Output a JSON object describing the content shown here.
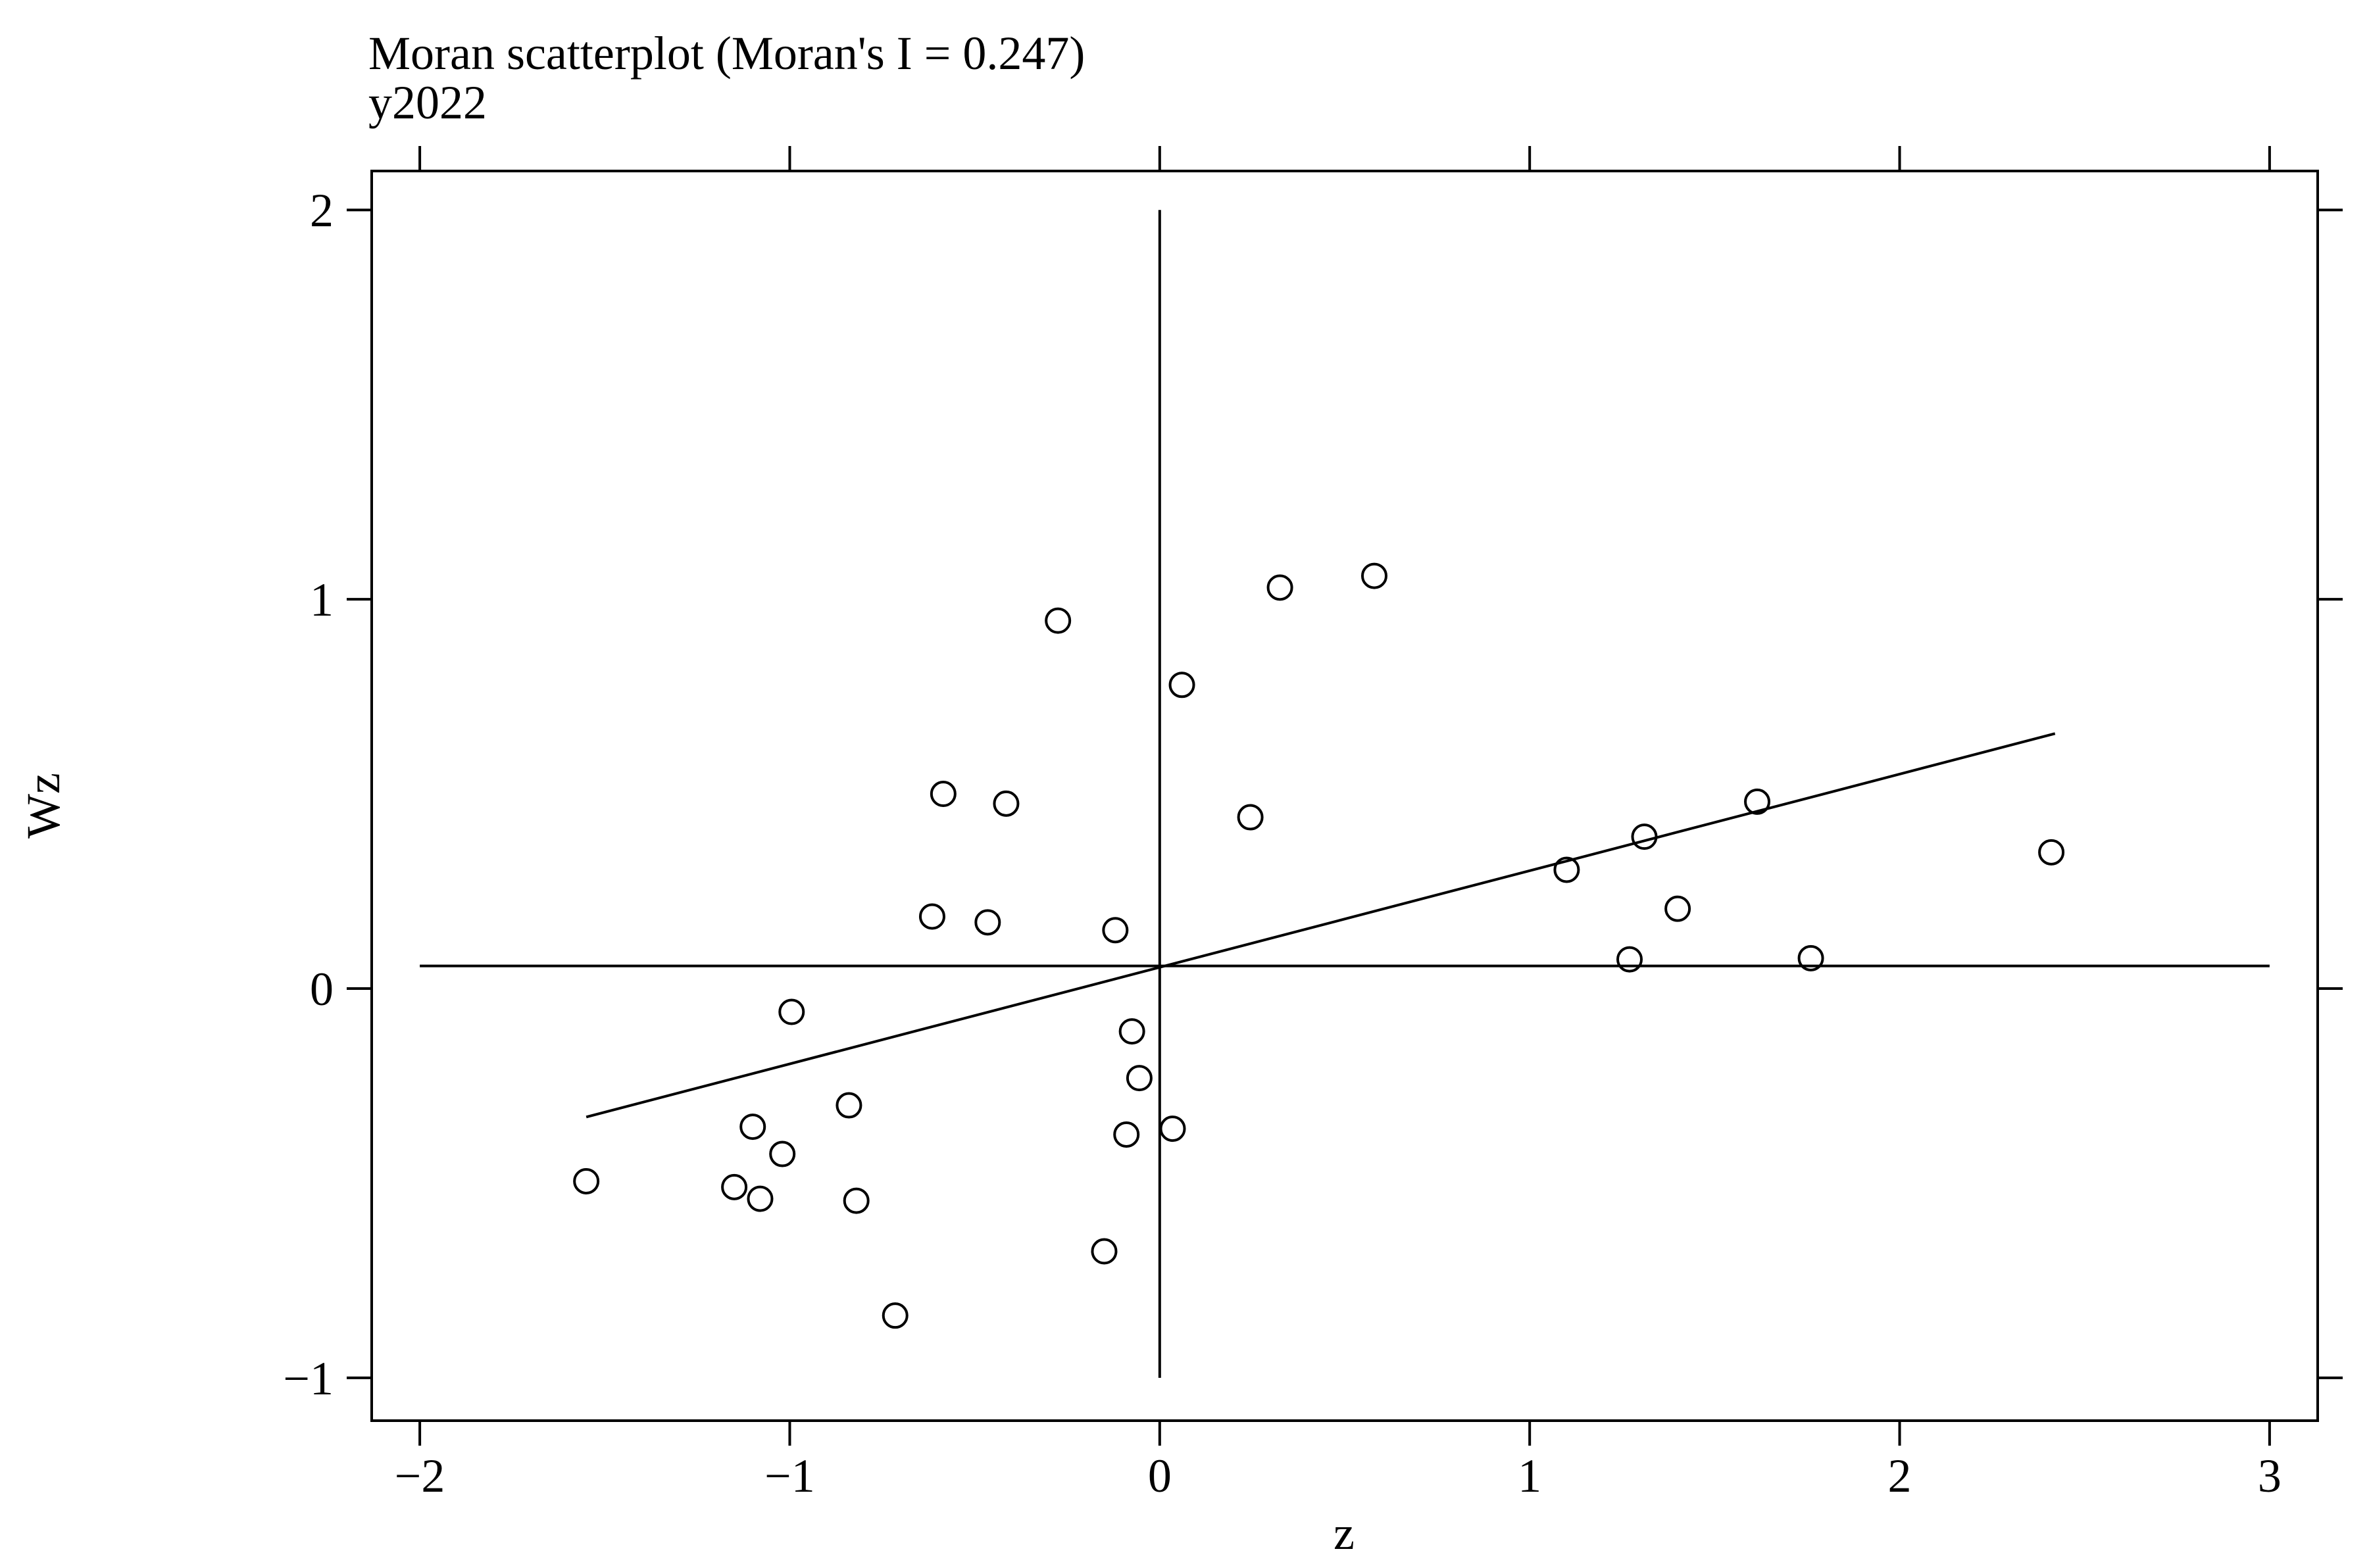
{
  "chart_data": {
    "type": "scatter",
    "title": "Moran scatterplot (Moran's I = 0.247)",
    "subtitle": "y2022",
    "xlabel": "z",
    "ylabel": "Wz",
    "xlim": [
      -2.13,
      3.13
    ],
    "ylim": [
      -1.11,
      2.1
    ],
    "xticks": [
      -2,
      -1,
      0,
      1,
      2,
      3
    ],
    "xtick_labels": [
      "−2",
      "−1",
      "0",
      "1",
      "2",
      "3"
    ],
    "yticks": [
      -1,
      0,
      1,
      2
    ],
    "ytick_labels": [
      "−1",
      "0",
      "1",
      "2"
    ],
    "reference_lines": {
      "vertical_x": 0,
      "horizontal_y": 0.058,
      "vertical_span": [
        -1,
        2
      ],
      "horizontal_span": [
        -2,
        3
      ]
    },
    "regression_line": {
      "x": [
        -1.55,
        2.42
      ],
      "y": [
        -0.33,
        0.655
      ]
    },
    "grid": false,
    "legend": "none",
    "marker": "open-circle",
    "points": [
      {
        "x": -1.55,
        "y": -0.495
      },
      {
        "x": -1.15,
        "y": -0.51
      },
      {
        "x": -1.1,
        "y": -0.355
      },
      {
        "x": -1.08,
        "y": -0.54
      },
      {
        "x": -1.02,
        "y": -0.425
      },
      {
        "x": -0.995,
        "y": -0.06
      },
      {
        "x": -0.84,
        "y": -0.3
      },
      {
        "x": -0.82,
        "y": -0.545
      },
      {
        "x": -0.715,
        "y": -0.84
      },
      {
        "x": -0.615,
        "y": 0.185
      },
      {
        "x": -0.585,
        "y": 0.5
      },
      {
        "x": -0.465,
        "y": 0.17
      },
      {
        "x": -0.415,
        "y": 0.475
      },
      {
        "x": -0.275,
        "y": 0.945
      },
      {
        "x": -0.15,
        "y": -0.675
      },
      {
        "x": -0.12,
        "y": 0.15
      },
      {
        "x": -0.09,
        "y": -0.375
      },
      {
        "x": -0.075,
        "y": -0.11
      },
      {
        "x": -0.055,
        "y": -0.23
      },
      {
        "x": 0.035,
        "y": -0.36
      },
      {
        "x": 0.06,
        "y": 0.78
      },
      {
        "x": 0.245,
        "y": 0.44
      },
      {
        "x": 0.325,
        "y": 1.03
      },
      {
        "x": 0.58,
        "y": 1.06
      },
      {
        "x": 1.1,
        "y": 0.305
      },
      {
        "x": 1.27,
        "y": 0.075
      },
      {
        "x": 1.31,
        "y": 0.39
      },
      {
        "x": 1.4,
        "y": 0.205
      },
      {
        "x": 1.615,
        "y": 0.48
      },
      {
        "x": 1.76,
        "y": 0.078
      },
      {
        "x": 2.41,
        "y": 0.35
      }
    ]
  }
}
